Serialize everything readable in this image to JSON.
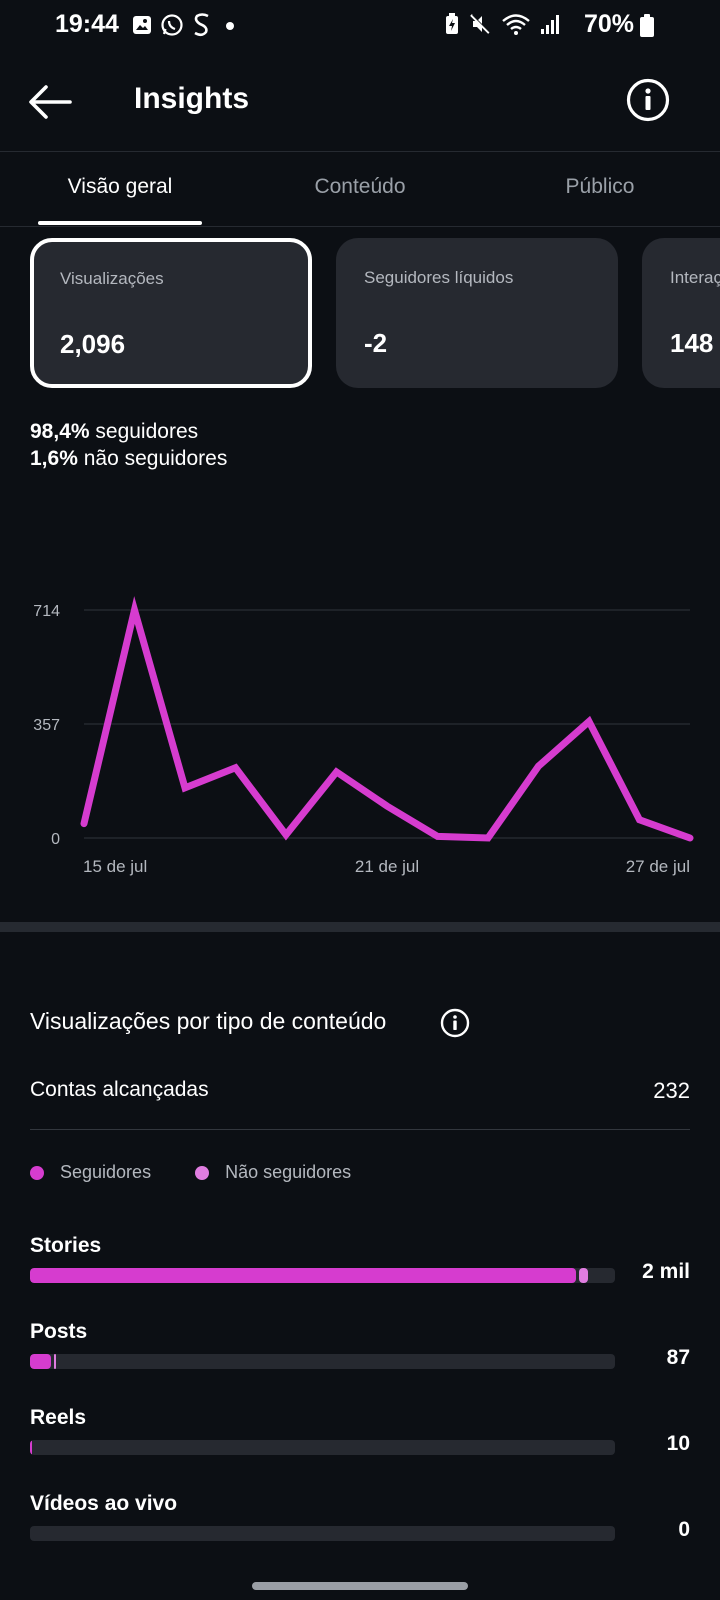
{
  "status_bar": {
    "time": "19:44",
    "left_icons": [
      "gallery-icon",
      "whatsapp-icon",
      "s-app-icon",
      "dot-icon"
    ],
    "right_icons": [
      "battery-saver-icon",
      "mute-icon",
      "wifi-icon",
      "signal-icon"
    ],
    "battery": "70%"
  },
  "header": {
    "title": "Insights",
    "back_icon": "arrow-left-icon",
    "info_icon": "info-icon"
  },
  "tabs": [
    {
      "label": "Visão geral",
      "active": true
    },
    {
      "label": "Conteúdo",
      "active": false
    },
    {
      "label": "Público",
      "active": false
    }
  ],
  "cards": [
    {
      "label": "Visualizações",
      "value": "2,096",
      "selected": true
    },
    {
      "label": "Seguidores líquidos",
      "value": "-2",
      "selected": false
    },
    {
      "label": "Interações",
      "value": "148",
      "selected": false
    }
  ],
  "breakdown": {
    "followers_pct": "98,4%",
    "followers_text": "seguidores",
    "non_followers_pct": "1,6%",
    "non_followers_text": "não seguidores"
  },
  "chart_data": {
    "type": "line",
    "x": [
      "15 de jul",
      "16 de jul",
      "17 de jul",
      "18 de jul",
      "19 de jul",
      "20 de jul",
      "21 de jul",
      "22 de jul",
      "23 de jul",
      "24 de jul",
      "25 de jul",
      "26 de jul",
      "27 de jul"
    ],
    "x_tick_labels": [
      "15 de jul",
      "21 de jul",
      "27 de jul"
    ],
    "y_tick_labels": [
      "714",
      "357",
      "0"
    ],
    "series": [
      {
        "values": [
          45,
          714,
          157,
          220,
          10,
          207,
          100,
          5,
          0,
          225,
          365,
          57,
          0
        ],
        "color": "#d63ccf"
      }
    ],
    "ylim": [
      0,
      714
    ],
    "grid": true,
    "legend": "none"
  },
  "content_section": {
    "title": "Visualizações por tipo de conteúdo",
    "info_icon": "info-icon",
    "reach_label": "Contas alcançadas",
    "reach_value": "232",
    "legend": [
      {
        "label": "Seguidores",
        "color": "#d63ccf"
      },
      {
        "label": "Não seguidores",
        "color": "#e07de0"
      }
    ],
    "bars": [
      {
        "label": "Stories",
        "value": "2 mil",
        "followers_fraction": 0.934,
        "non_followers_fraction": 0.014
      },
      {
        "label": "Posts",
        "value": "87",
        "followers_fraction": 0.036,
        "non_followers_fraction": 0.004
      },
      {
        "label": "Reels",
        "value": "10",
        "followers_fraction": 0.004,
        "non_followers_fraction": 0.0
      },
      {
        "label": "Vídeos ao vivo",
        "value": "0",
        "followers_fraction": 0.0,
        "non_followers_fraction": 0.0
      }
    ]
  },
  "colors": {
    "accent": "#d63ccf",
    "accent_light": "#e07de0",
    "background": "#0c0f14",
    "card": "#262930"
  }
}
